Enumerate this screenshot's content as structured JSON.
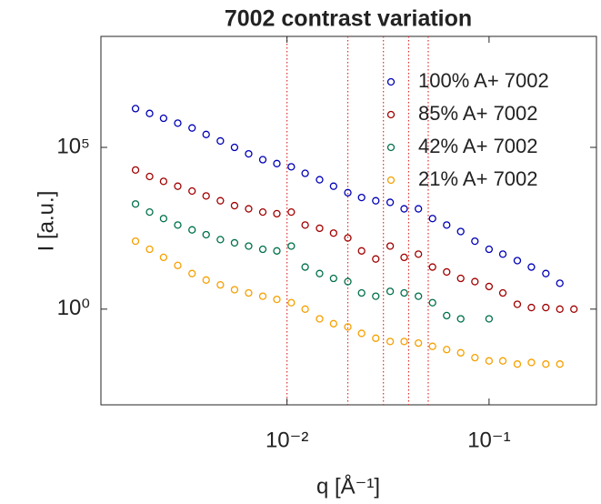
{
  "chart_data": {
    "type": "scatter",
    "title": "7002 contrast variation",
    "xlabel": "q [Å⁻¹]",
    "ylabel": "I [a.u.]",
    "xscale": "log",
    "yscale": "log",
    "xlim": [
      0.0012,
      0.34
    ],
    "ylim": [
      0.0011,
      270000000
    ],
    "xticks": [
      {
        "value": 0.01,
        "label": "10⁻²"
      },
      {
        "value": 0.1,
        "label": "10⁻¹"
      }
    ],
    "yticks": [
      {
        "value": 1,
        "label": "10⁰"
      },
      {
        "value": 100000,
        "label": "10⁵"
      }
    ],
    "legend": "northeast",
    "vlines": [
      0.01,
      0.02,
      0.03,
      0.04,
      0.05
    ],
    "vline_color": "#e03030",
    "x": [
      0.00178,
      0.00209,
      0.00245,
      0.00288,
      0.00339,
      0.00398,
      0.00468,
      0.0055,
      0.00646,
      0.00759,
      0.00891,
      0.0105,
      0.0123,
      0.0145,
      0.017,
      0.02,
      0.0234,
      0.0275,
      0.0324,
      0.038,
      0.0447,
      0.0525,
      0.0617,
      0.0724,
      0.0851,
      0.1,
      0.117,
      0.138,
      0.162,
      0.191,
      0.224,
      0.263
    ],
    "series": [
      {
        "name": "100% A+ 7002",
        "color": "#0000b4",
        "values": [
          1580000,
          1120000,
          794000,
          562000,
          398000,
          251000,
          158000,
          100000,
          63100,
          41700,
          31600,
          25100,
          15800,
          10000,
          6310,
          3980,
          2820,
          2240,
          2000,
          1260,
          1260,
          631,
          398,
          251,
          126,
          70.8,
          50.1,
          31.6,
          20,
          12.6,
          6.31,
          null
        ]
      },
      {
        "name": "85% A+ 7002",
        "color": "#a00000",
        "values": [
          20000,
          12600,
          8910,
          6310,
          4470,
          3160,
          2240,
          1580,
          1260,
          1000,
          891,
          1000,
          398,
          316,
          224,
          158,
          63.1,
          35.5,
          89.1,
          39.8,
          50.1,
          20,
          14.1,
          8.91,
          7.08,
          5.01,
          3.16,
          1.41,
          1.12,
          1.12,
          1,
          1
        ]
      },
      {
        "name": "42% A+ 7002",
        "color": "#00704a",
        "values": [
          1780,
          1000,
          631,
          398,
          282,
          200,
          141,
          112,
          89.1,
          70.8,
          63.1,
          89.1,
          20,
          12.6,
          8.91,
          7.08,
          3.16,
          2.51,
          3.55,
          3.16,
          2.51,
          1.58,
          0.631,
          0.501,
          null,
          0.501,
          null,
          null,
          null,
          null,
          null,
          null
        ]
      },
      {
        "name": "21% A+ 7002",
        "color": "#f5a000",
        "values": [
          126,
          70.8,
          39.8,
          22.4,
          12.6,
          7.94,
          5.62,
          3.98,
          3.16,
          2.51,
          2,
          1.58,
          1,
          0.501,
          0.355,
          0.282,
          0.178,
          0.126,
          0.1,
          0.1,
          0.0891,
          0.0708,
          0.0562,
          0.0447,
          0.0316,
          0.0251,
          0.0251,
          0.02,
          0.0224,
          0.02,
          0.02,
          null
        ]
      }
    ]
  }
}
